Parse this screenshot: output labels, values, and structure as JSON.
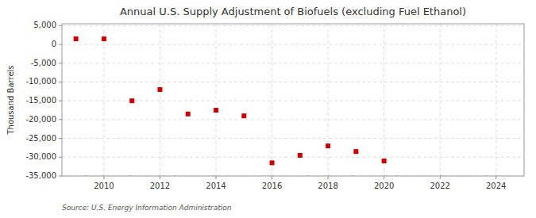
{
  "chart_data": {
    "type": "scatter",
    "title": "Annual U.S. Supply Adjustment of Biofuels (excluding Fuel Ethanol)",
    "ylabel": "Thousand Barrels",
    "source": "Source: U.S. Energy Information Administration",
    "x": [
      2009,
      2010,
      2011,
      2012,
      2013,
      2014,
      2015,
      2016,
      2017,
      2018,
      2019,
      2020
    ],
    "values": [
      1500,
      1500,
      -15000,
      -12000,
      -18500,
      -17500,
      -19000,
      -31500,
      -29500,
      -27000,
      -28500,
      -31000
    ],
    "color": "#cc0000",
    "marker": "square",
    "xlim": [
      2008.5,
      2025
    ],
    "ylim": [
      -35000,
      5500
    ],
    "xticks": [
      2010,
      2012,
      2014,
      2016,
      2018,
      2020,
      2022,
      2024
    ],
    "yticks": [
      {
        "value": 5000,
        "label": "5,000"
      },
      0,
      {
        "value": -5000,
        "label": "-5,000"
      },
      {
        "value": -10000,
        "label": "-10,000"
      },
      {
        "value": -15000,
        "label": "-15,000"
      },
      {
        "value": -20000,
        "label": "-20,000"
      },
      {
        "value": -25000,
        "label": "-25,000"
      },
      {
        "value": -30000,
        "label": "-30,000"
      },
      {
        "value": -35000,
        "label": "-35,000"
      }
    ],
    "grid": true
  }
}
